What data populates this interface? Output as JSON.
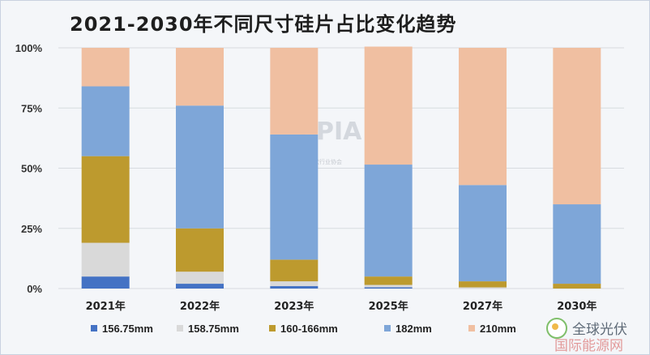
{
  "chart_data": {
    "type": "bar",
    "stacked": true,
    "title": "2021-2030年不同尺寸硅片占比变化趋势",
    "categories": [
      "2021年",
      "2022年",
      "2023年",
      "2025年",
      "2027年",
      "2030年"
    ],
    "ylim": [
      0,
      100
    ],
    "yticks": [
      "0%",
      "25%",
      "50%",
      "75%",
      "100%"
    ],
    "grid": true,
    "legend_position": "bottom",
    "series": [
      {
        "name": "156.75mm",
        "color": "#4472c4",
        "values": [
          5,
          2,
          1,
          0.5,
          0,
          0
        ]
      },
      {
        "name": "158.75mm",
        "color": "#d9d9d9",
        "values": [
          14,
          5,
          2,
          1,
          0.5,
          0
        ]
      },
      {
        "name": "160-166mm",
        "color": "#bd9a2e",
        "values": [
          36,
          18,
          9,
          3.5,
          2.5,
          2
        ]
      },
      {
        "name": "182mm",
        "color": "#7ea6d8",
        "values": [
          29,
          51,
          52,
          46.5,
          40,
          33
        ]
      },
      {
        "name": "210mm",
        "color": "#f0bfa1",
        "values": [
          16,
          24,
          36,
          49,
          57,
          65
        ]
      }
    ]
  },
  "watermark": {
    "logo_text": "CPIA",
    "sub_text": "中国光伏行业协会"
  },
  "badge": {
    "line1": "全球光伏",
    "line2": "国际能源网"
  }
}
